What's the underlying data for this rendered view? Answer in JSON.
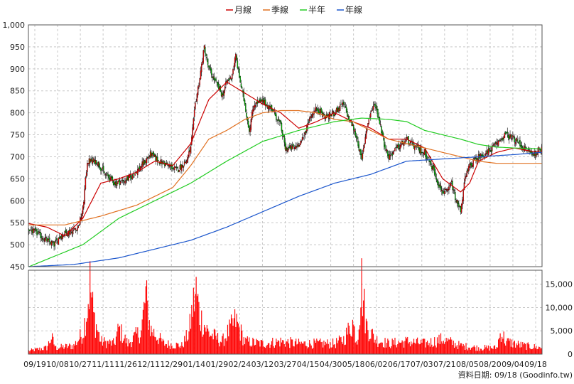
{
  "legend": [
    {
      "name": "月線",
      "color": "#cc0000"
    },
    {
      "name": "季線",
      "color": "#e07020"
    },
    {
      "name": "半年",
      "color": "#22cc22"
    },
    {
      "name": "年線",
      "color": "#1a55cc"
    }
  ],
  "source_note": "資料日期: 09/18 (Goodinfo.tw)",
  "colors": {
    "up": "#ff0000",
    "down": "#00c000",
    "volume": "#ff0000",
    "grid": "#c8c8c8"
  },
  "chart_data": {
    "type": "candlestick",
    "ylim": [
      450,
      1000
    ],
    "yticks": [
      450,
      500,
      550,
      600,
      650,
      700,
      750,
      800,
      850,
      900,
      950,
      1000
    ],
    "ytick_labels": [
      "450",
      "500",
      "550",
      "600",
      "650",
      "700",
      "750",
      "800",
      "850",
      "900",
      "950",
      "1,000"
    ],
    "volume_ylim": [
      0,
      18000
    ],
    "volume_ticks": [
      0,
      5000,
      10000,
      15000
    ],
    "volume_tick_labels": [
      "0",
      "5,000",
      "10,000",
      "15,000"
    ],
    "xtick_labels": [
      "09/19",
      "10/08",
      "10/27",
      "11/11",
      "11/26",
      "12/11",
      "12/29",
      "01/14",
      "01/29",
      "02/24",
      "03/12",
      "03/27",
      "04/15",
      "04/30",
      "05/18",
      "06/02",
      "06/17",
      "07/03",
      "07/21",
      "08/05",
      "08/20",
      "09/04",
      "09/18"
    ],
    "price_keypoints": [
      [
        0,
        535
      ],
      [
        10,
        525
      ],
      [
        20,
        510
      ],
      [
        28,
        500
      ],
      [
        35,
        520
      ],
      [
        45,
        530
      ],
      [
        55,
        540
      ],
      [
        60,
        580
      ],
      [
        65,
        690
      ],
      [
        75,
        690
      ],
      [
        85,
        660
      ],
      [
        95,
        640
      ],
      [
        105,
        645
      ],
      [
        115,
        655
      ],
      [
        125,
        680
      ],
      [
        135,
        705
      ],
      [
        145,
        690
      ],
      [
        155,
        680
      ],
      [
        165,
        670
      ],
      [
        175,
        690
      ],
      [
        180,
        720
      ],
      [
        185,
        820
      ],
      [
        190,
        880
      ],
      [
        195,
        950
      ],
      [
        200,
        900
      ],
      [
        205,
        880
      ],
      [
        210,
        860
      ],
      [
        215,
        840
      ],
      [
        220,
        870
      ],
      [
        225,
        880
      ],
      [
        230,
        930
      ],
      [
        235,
        870
      ],
      [
        240,
        820
      ],
      [
        245,
        760
      ],
      [
        250,
        820
      ],
      [
        260,
        825
      ],
      [
        270,
        810
      ],
      [
        280,
        770
      ],
      [
        285,
        720
      ],
      [
        295,
        720
      ],
      [
        305,
        740
      ],
      [
        312,
        790
      ],
      [
        320,
        810
      ],
      [
        330,
        790
      ],
      [
        340,
        800
      ],
      [
        350,
        820
      ],
      [
        355,
        790
      ],
      [
        360,
        770
      ],
      [
        365,
        740
      ],
      [
        370,
        690
      ],
      [
        375,
        760
      ],
      [
        380,
        800
      ],
      [
        385,
        820
      ],
      [
        390,
        780
      ],
      [
        395,
        730
      ],
      [
        400,
        700
      ],
      [
        410,
        720
      ],
      [
        420,
        740
      ],
      [
        430,
        720
      ],
      [
        440,
        710
      ],
      [
        450,
        670
      ],
      [
        455,
        640
      ],
      [
        460,
        620
      ],
      [
        465,
        620
      ],
      [
        470,
        640
      ],
      [
        475,
        600
      ],
      [
        480,
        580
      ],
      [
        485,
        650
      ],
      [
        490,
        680
      ],
      [
        500,
        700
      ],
      [
        510,
        710
      ],
      [
        520,
        730
      ],
      [
        530,
        750
      ],
      [
        540,
        740
      ],
      [
        550,
        720
      ],
      [
        560,
        705
      ],
      [
        570,
        720
      ]
    ],
    "volume_keypoints": [
      [
        0,
        800
      ],
      [
        20,
        1500
      ],
      [
        25,
        4000
      ],
      [
        30,
        1500
      ],
      [
        50,
        2000
      ],
      [
        60,
        5000
      ],
      [
        65,
        11000
      ],
      [
        68,
        17000
      ],
      [
        72,
        9000
      ],
      [
        80,
        3000
      ],
      [
        95,
        2500
      ],
      [
        100,
        6000
      ],
      [
        110,
        2500
      ],
      [
        125,
        5500
      ],
      [
        130,
        14000
      ],
      [
        135,
        6000
      ],
      [
        150,
        2500
      ],
      [
        170,
        2000
      ],
      [
        178,
        5000
      ],
      [
        182,
        11000
      ],
      [
        186,
        15000
      ],
      [
        190,
        9000
      ],
      [
        200,
        5000
      ],
      [
        215,
        3000
      ],
      [
        230,
        8000
      ],
      [
        240,
        3000
      ],
      [
        260,
        2500
      ],
      [
        280,
        3000
      ],
      [
        300,
        2500
      ],
      [
        320,
        2500
      ],
      [
        340,
        2500
      ],
      [
        350,
        3500
      ],
      [
        360,
        7500
      ],
      [
        365,
        3000
      ],
      [
        370,
        17000
      ],
      [
        375,
        7000
      ],
      [
        385,
        3500
      ],
      [
        400,
        2500
      ],
      [
        420,
        3000
      ],
      [
        440,
        2500
      ],
      [
        460,
        3500
      ],
      [
        480,
        2000
      ],
      [
        500,
        1500
      ],
      [
        520,
        1500
      ],
      [
        525,
        5500
      ],
      [
        530,
        3000
      ],
      [
        550,
        2000
      ],
      [
        570,
        1500
      ]
    ],
    "moving_averages": {
      "月線": [
        [
          0,
          548
        ],
        [
          20,
          540
        ],
        [
          40,
          520
        ],
        [
          60,
          560
        ],
        [
          80,
          640
        ],
        [
          100,
          650
        ],
        [
          120,
          665
        ],
        [
          140,
          690
        ],
        [
          160,
          680
        ],
        [
          180,
          730
        ],
        [
          200,
          830
        ],
        [
          220,
          870
        ],
        [
          240,
          845
        ],
        [
          260,
          820
        ],
        [
          280,
          800
        ],
        [
          300,
          765
        ],
        [
          320,
          780
        ],
        [
          340,
          800
        ],
        [
          360,
          780
        ],
        [
          380,
          765
        ],
        [
          400,
          740
        ],
        [
          420,
          740
        ],
        [
          440,
          720
        ],
        [
          460,
          650
        ],
        [
          480,
          620
        ],
        [
          490,
          640
        ],
        [
          500,
          690
        ],
        [
          520,
          710
        ],
        [
          540,
          720
        ],
        [
          560,
          712
        ],
        [
          570,
          710
        ]
      ],
      "季線": [
        [
          0,
          545
        ],
        [
          40,
          545
        ],
        [
          80,
          565
        ],
        [
          120,
          590
        ],
        [
          160,
          630
        ],
        [
          180,
          680
        ],
        [
          200,
          740
        ],
        [
          220,
          760
        ],
        [
          240,
          785
        ],
        [
          260,
          800
        ],
        [
          280,
          805
        ],
        [
          300,
          805
        ],
        [
          320,
          800
        ],
        [
          340,
          785
        ],
        [
          360,
          780
        ],
        [
          380,
          760
        ],
        [
          400,
          740
        ],
        [
          420,
          730
        ],
        [
          440,
          720
        ],
        [
          460,
          710
        ],
        [
          480,
          700
        ],
        [
          500,
          690
        ],
        [
          520,
          685
        ],
        [
          540,
          685
        ],
        [
          570,
          685
        ]
      ],
      "半年": [
        [
          0,
          450
        ],
        [
          60,
          500
        ],
        [
          100,
          560
        ],
        [
          140,
          600
        ],
        [
          180,
          640
        ],
        [
          220,
          690
        ],
        [
          260,
          735
        ],
        [
          300,
          760
        ],
        [
          340,
          780
        ],
        [
          370,
          788
        ],
        [
          400,
          785
        ],
        [
          420,
          780
        ],
        [
          440,
          760
        ],
        [
          460,
          750
        ],
        [
          480,
          740
        ],
        [
          500,
          728
        ],
        [
          520,
          722
        ],
        [
          540,
          720
        ],
        [
          570,
          718
        ]
      ],
      "年線": [
        [
          0,
          450
        ],
        [
          50,
          455
        ],
        [
          100,
          470
        ],
        [
          140,
          490
        ],
        [
          180,
          510
        ],
        [
          220,
          540
        ],
        [
          260,
          575
        ],
        [
          300,
          610
        ],
        [
          340,
          640
        ],
        [
          380,
          660
        ],
        [
          420,
          690
        ],
        [
          460,
          695
        ],
        [
          500,
          700
        ],
        [
          540,
          705
        ],
        [
          570,
          710
        ]
      ]
    }
  }
}
